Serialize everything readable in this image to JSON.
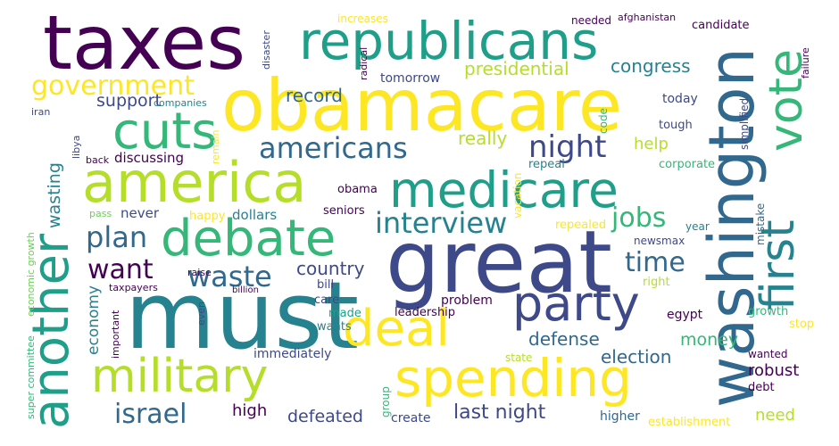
{
  "colors": {
    "background": "#ffffff",
    "palette": [
      "#440154",
      "#482878",
      "#3e4989",
      "#31688e",
      "#26828e",
      "#1f9e89",
      "#35b779",
      "#6ece58",
      "#b5de2b",
      "#fde725"
    ]
  },
  "words": [
    "taxes",
    "republicans",
    "obamacare",
    "great",
    "must",
    "washington",
    "america",
    "medicare",
    "debate",
    "cuts",
    "another",
    "spending",
    "military",
    "deal",
    "party",
    "first",
    "vote",
    "government",
    "interview",
    "americans",
    "night",
    "jobs",
    "plan",
    "want",
    "waste",
    "time",
    "israel",
    "last night",
    "presidential",
    "congress",
    "record",
    "support",
    "really",
    "help",
    "country",
    "defense",
    "election",
    "money",
    "robust",
    "defeated",
    "high",
    "need",
    "economy",
    "wasting",
    "tomorrow",
    "discussing",
    "never",
    "dollars",
    "happy",
    "seniors",
    "obama",
    "immediately",
    "problem",
    "leadership",
    "wants",
    "made",
    "care",
    "bill",
    "create",
    "group",
    "state",
    "higher",
    "establishment",
    "debt",
    "wanted",
    "stop",
    "growth",
    "egypt",
    "right",
    "newsmax",
    "repealed",
    "year",
    "mistake",
    "corporate",
    "repeal",
    "vacation",
    "code",
    "tough",
    "today",
    "simplified",
    "candidate",
    "needed",
    "afghanistan",
    "increases",
    "disaster",
    "radical",
    "failure",
    "companies",
    "iran",
    "libya",
    "back",
    "remain",
    "pass",
    "raise",
    "taxpayers",
    "billion",
    "important",
    "even",
    "super committee",
    "economic growth"
  ]
}
